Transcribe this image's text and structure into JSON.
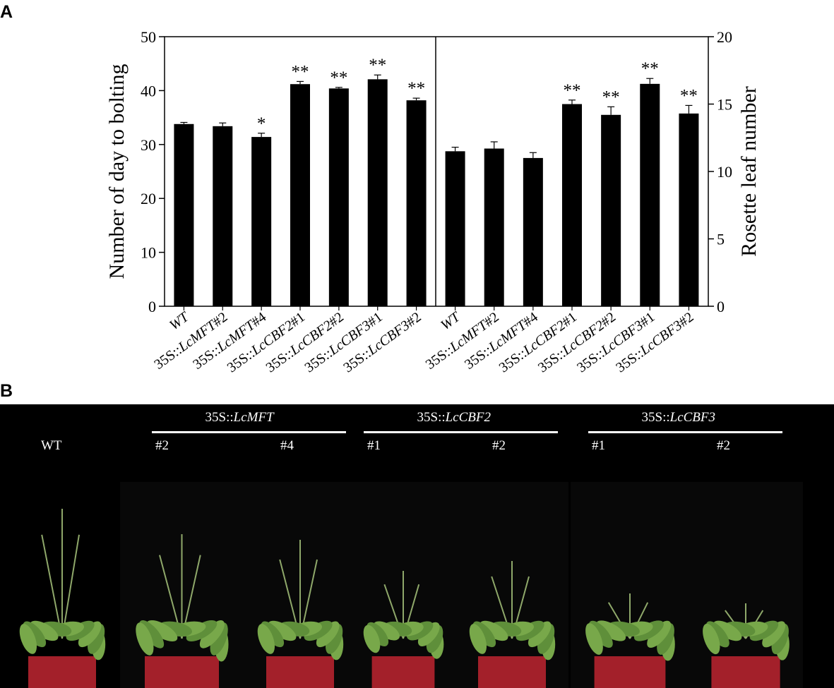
{
  "panel_a_label": "A",
  "panel_b_label": "B",
  "chart_data": {
    "type": "bar",
    "left_axis": {
      "ylabel": "Number of day to bolting",
      "ylim": [
        0,
        50
      ],
      "ticks": [
        "0",
        "10",
        "20",
        "30",
        "40",
        "50"
      ]
    },
    "right_axis": {
      "ylabel": "Rosette leaf number",
      "ylim": [
        0,
        20
      ],
      "ticks": [
        "0",
        "5",
        "10",
        "15",
        "20"
      ]
    },
    "categories": [
      {
        "prefix": "",
        "italic": "WT"
      },
      {
        "prefix": "35S::",
        "italic": "LcMFT",
        "suffix": "#2"
      },
      {
        "prefix": "35S::",
        "italic": "LcMFT",
        "suffix": "#4"
      },
      {
        "prefix": "35S::",
        "italic": "LcCBF2",
        "suffix": "#1"
      },
      {
        "prefix": "35S::",
        "italic": "LcCBF2",
        "suffix": "#2"
      },
      {
        "prefix": "35S::",
        "italic": "LcCBF3",
        "suffix": "#1"
      },
      {
        "prefix": "35S::",
        "italic": "LcCBF3",
        "suffix": "#2"
      }
    ],
    "series": [
      {
        "axis": "left",
        "values": [
          33.8,
          33.4,
          31.4,
          41.2,
          40.4,
          42.1,
          38.2
        ],
        "errors": [
          0.3,
          0.6,
          0.7,
          0.5,
          0.2,
          0.8,
          0.4
        ],
        "significance": [
          "",
          "",
          "*",
          "**",
          "**",
          "**",
          "**"
        ]
      },
      {
        "axis": "right",
        "values": [
          11.5,
          11.7,
          11.0,
          15.0,
          14.2,
          16.5,
          14.3
        ],
        "errors": [
          0.3,
          0.5,
          0.4,
          0.3,
          0.6,
          0.4,
          0.6
        ],
        "significance": [
          "",
          "",
          "",
          "**",
          "**",
          "**",
          "**"
        ]
      }
    ],
    "bar_color": "#000000"
  },
  "photo": {
    "background": "#000000",
    "wt_label": "WT",
    "groups": [
      {
        "prefix": "35S::",
        "italic": "LcMFT",
        "lines": [
          "#2",
          "#4"
        ]
      },
      {
        "prefix": "35S::",
        "italic": "LcCBF2",
        "lines": [
          "#1",
          "#2"
        ]
      },
      {
        "prefix": "35S::",
        "italic": "LcCBF3",
        "lines": [
          "#1",
          "#2"
        ]
      }
    ],
    "plants": [
      {
        "name": "WT",
        "height": 0.92
      },
      {
        "name": "LcMFT#2",
        "height": 0.74
      },
      {
        "name": "LcMFT#4",
        "height": 0.7
      },
      {
        "name": "LcCBF2#1",
        "height": 0.48
      },
      {
        "name": "LcCBF2#2",
        "height": 0.55
      },
      {
        "name": "LcCBF3#1",
        "height": 0.32
      },
      {
        "name": "LcCBF3#2",
        "height": 0.25
      }
    ]
  }
}
